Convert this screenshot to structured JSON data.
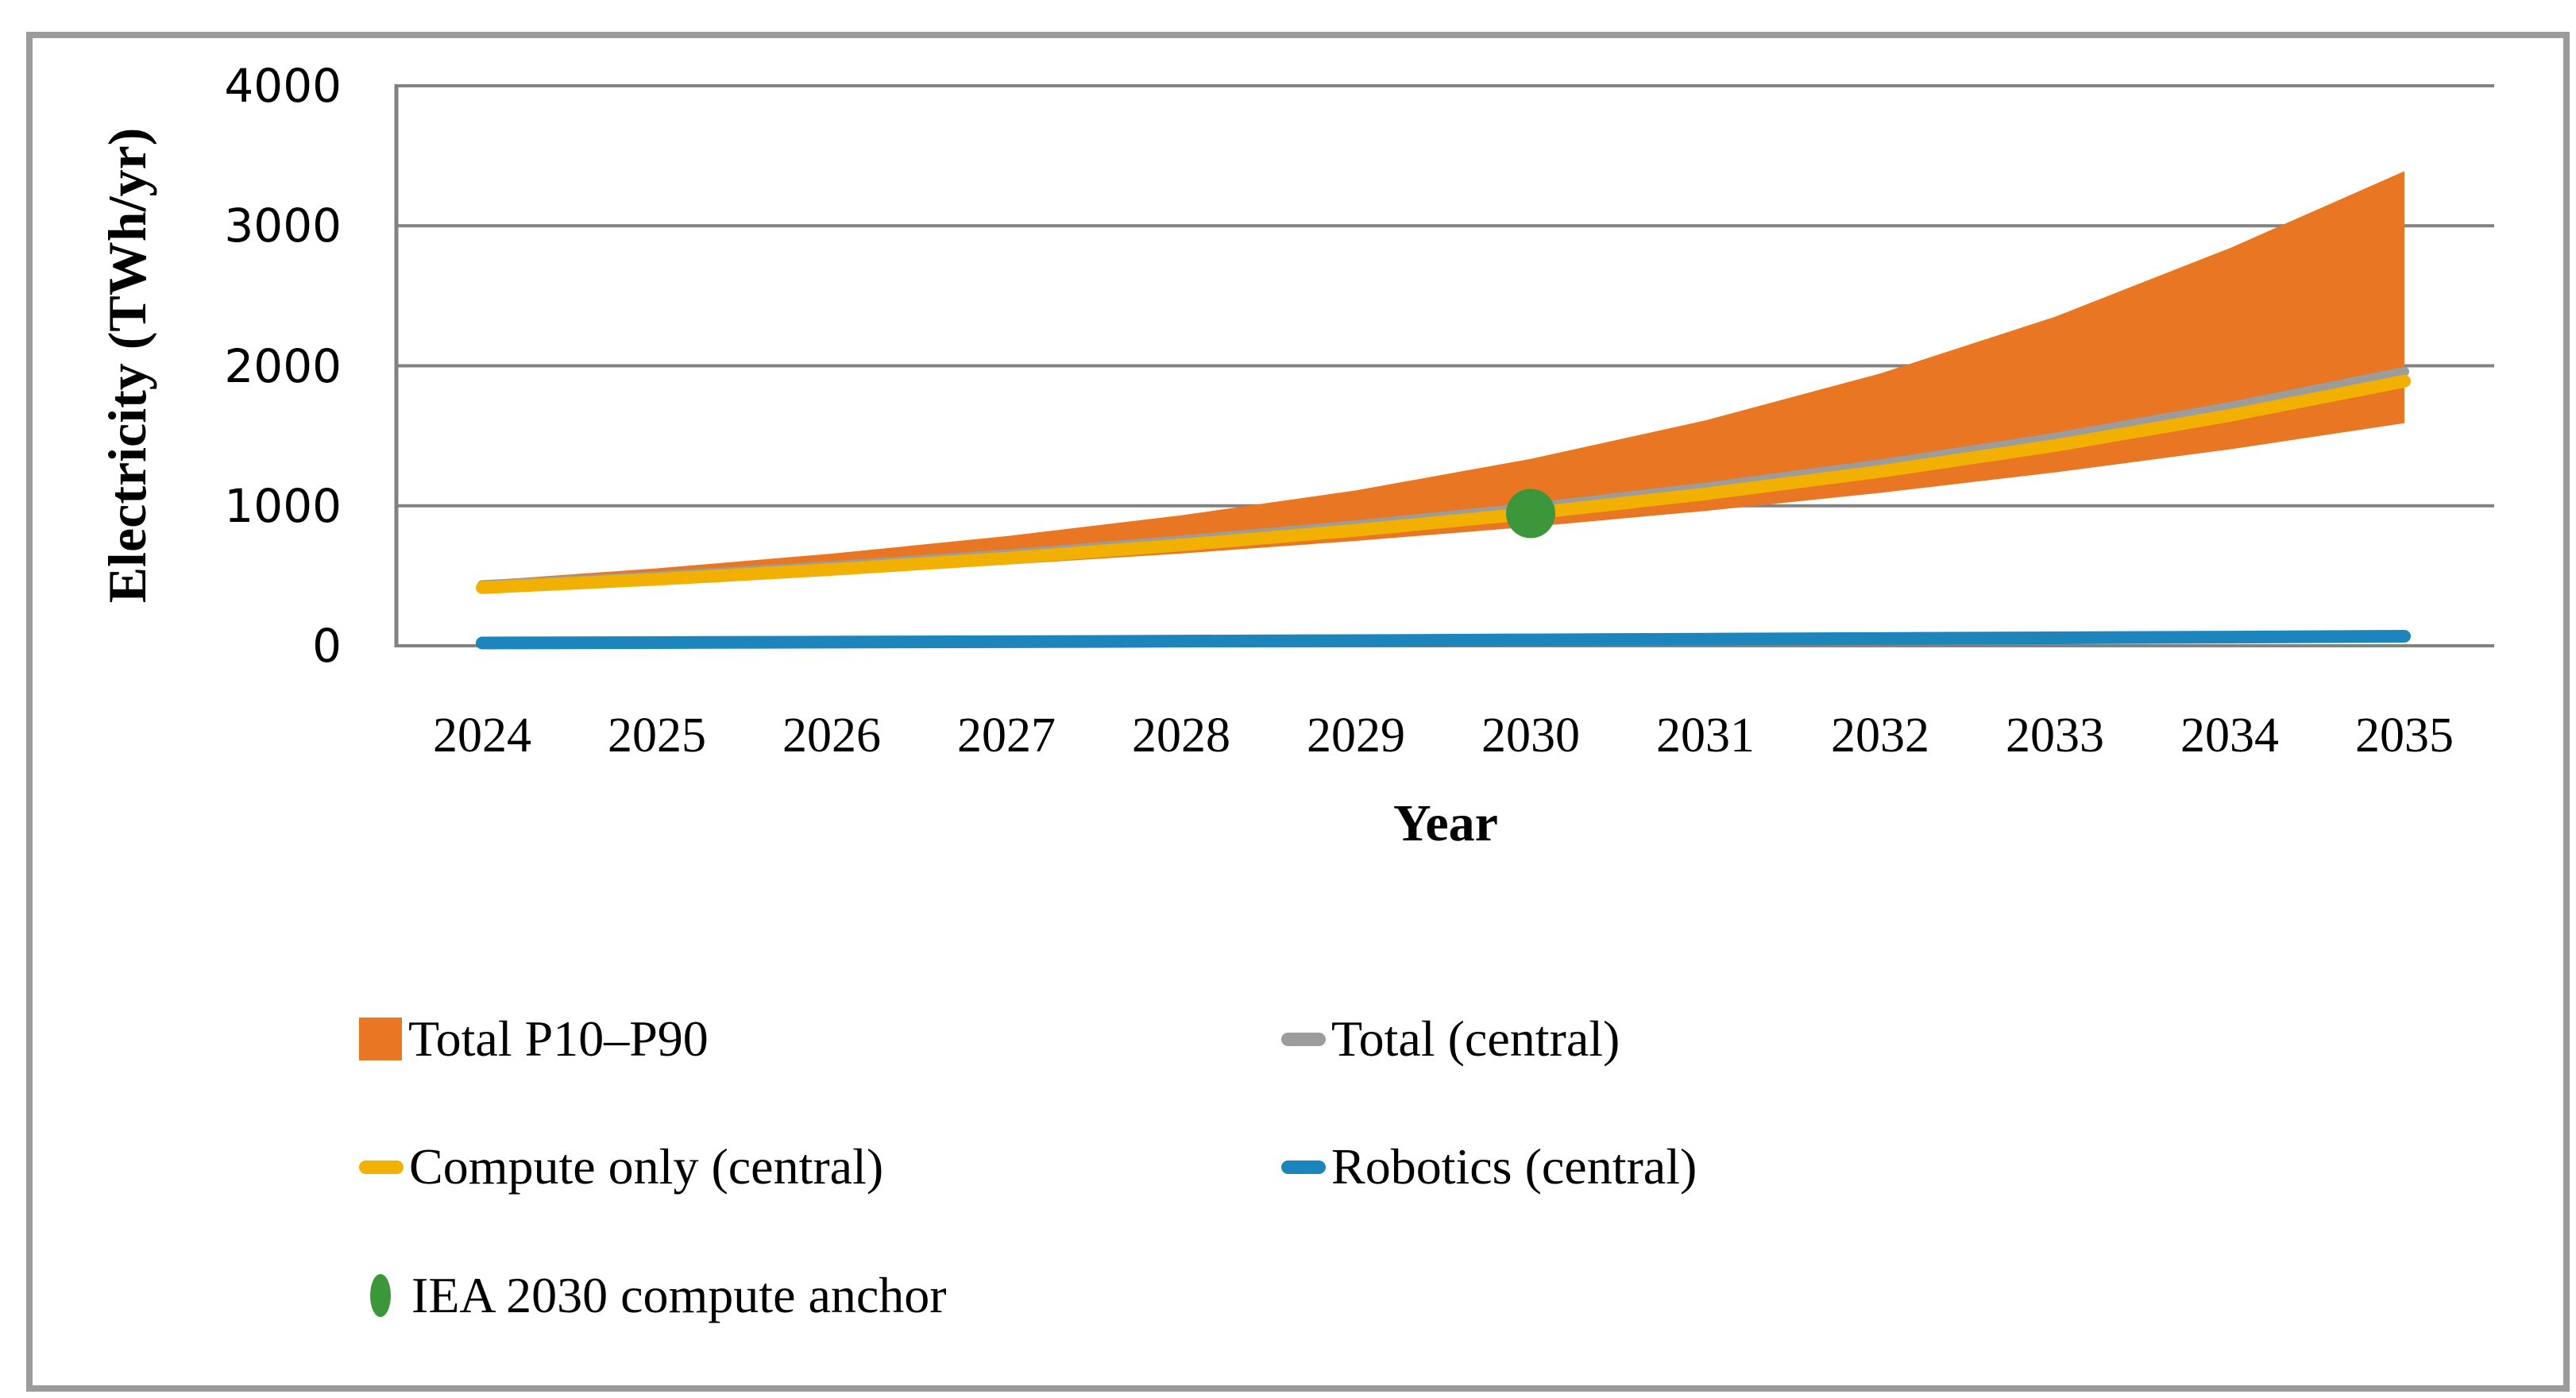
{
  "figure": {
    "y_axis": {
      "title": "Electricity (TWh/yr)",
      "ticks": [
        "4000",
        "3000",
        "2000",
        "1000",
        "0"
      ],
      "min": 0,
      "max": 4000
    },
    "x_axis": {
      "title": "Year",
      "ticks": [
        "2024",
        "2025",
        "2026",
        "2027",
        "2028",
        "2029",
        "2030",
        "2031",
        "2032",
        "2033",
        "2034",
        "2035"
      ]
    },
    "legend": [
      {
        "id": "band",
        "label": "Total P10–P90",
        "color": "#e87623",
        "swatch": "rect"
      },
      {
        "id": "total",
        "label": "Total (central)",
        "color": "#9c9c9c",
        "swatch": "line"
      },
      {
        "id": "compute",
        "label": "Compute only (central)",
        "color": "#f2b000",
        "swatch": "line"
      },
      {
        "id": "robotics",
        "label": "Robotics (central)",
        "color": "#1c86bc",
        "swatch": "line"
      },
      {
        "id": "anchor",
        "label": "IEA 2030 compute anchor",
        "color": "#3b9739",
        "swatch": "dot"
      }
    ],
    "colors": {
      "gridline": "#828282",
      "axis": "#808080",
      "frame": "#9b9b9b",
      "text": "#000000"
    }
  },
  "chart_data": {
    "type": "line",
    "title": "",
    "xlabel": "Year",
    "ylabel": "Electricity (TWh/yr)",
    "ylim": [
      0,
      4000
    ],
    "grid": true,
    "legend_position": "bottom",
    "x": [
      2024,
      2025,
      2026,
      2027,
      2028,
      2029,
      2030,
      2031,
      2032,
      2033,
      2034,
      2035
    ],
    "series": [
      {
        "id": "p10",
        "name": "Total P10 (band lower edge)",
        "style": "band-edge",
        "values": [
          395,
          449,
          510,
          580,
          659,
          749,
          850,
          963,
          1092,
          1238,
          1403,
          1590
        ]
      },
      {
        "id": "p90",
        "name": "Total P90 (band upper edge)",
        "style": "band-edge",
        "values": [
          465,
          553,
          658,
          783,
          932,
          1110,
          1335,
          1610,
          1945,
          2350,
          2840,
          3390
        ]
      },
      {
        "id": "total",
        "name": "Total (central)",
        "style": "line",
        "values": [
          435,
          498,
          571,
          654,
          753,
          862,
          987,
          1132,
          1297,
          1487,
          1707,
          1958
        ]
      },
      {
        "id": "compute",
        "name": "Compute only (central)",
        "style": "line",
        "values": [
          415,
          475,
          545,
          625,
          720,
          825,
          945,
          1085,
          1245,
          1430,
          1645,
          1890
        ]
      },
      {
        "id": "robotics",
        "name": "Robotics (central)",
        "style": "line",
        "values": [
          20,
          23,
          26,
          29,
          33,
          37,
          42,
          47,
          52,
          57,
          62,
          68
        ]
      }
    ],
    "anchor_point": {
      "name": "IEA 2030 compute anchor",
      "x": 2030,
      "y": 945
    }
  }
}
